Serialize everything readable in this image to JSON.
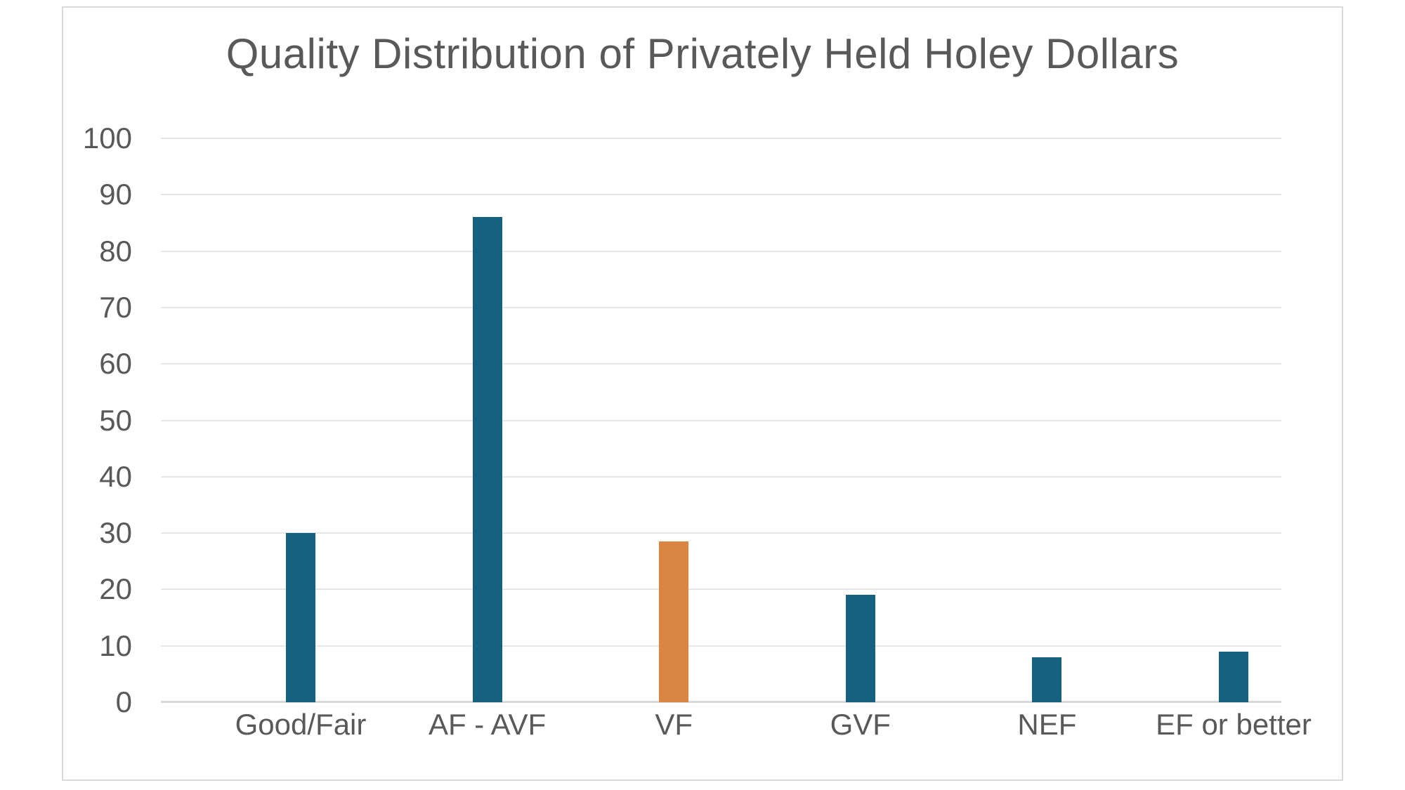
{
  "chart_data": {
    "type": "bar",
    "title": "Quality Distribution of Privately Held Holey Dollars",
    "categories": [
      "Good/Fair",
      "AF - AVF",
      "VF",
      "GVF",
      "NEF",
      "EF or better"
    ],
    "values": [
      30,
      86,
      28.5,
      19,
      8,
      9
    ],
    "bar_colors": [
      "#166080",
      "#166080",
      "#DA8541",
      "#166080",
      "#166080",
      "#166080"
    ],
    "title_color": "#595959",
    "axis_text_color": "#595959",
    "gridline_color": "#e6e6e6",
    "xlabel": "",
    "ylabel": "",
    "ylim": [
      0,
      100
    ],
    "ytick_step": 10,
    "ytick_labels": [
      "0",
      "10",
      "20",
      "30",
      "40",
      "50",
      "60",
      "70",
      "80",
      "90",
      "100"
    ],
    "grid": "horizontal",
    "legend": "none",
    "plot_background": "#ffffff"
  }
}
